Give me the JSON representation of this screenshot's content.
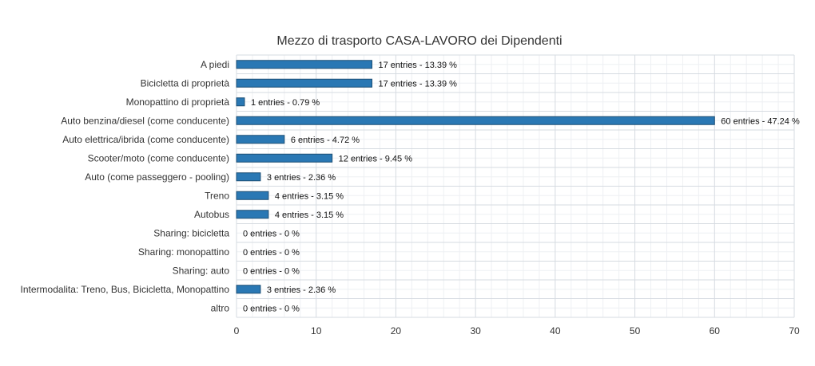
{
  "chart_data": {
    "type": "bar",
    "orientation": "horizontal",
    "title": "Mezzo di trasporto CASA-LAVORO dei Dipendenti",
    "xlabel": "",
    "ylabel": "",
    "xlim": [
      0,
      70
    ],
    "x_ticks": [
      "0",
      "10",
      "20",
      "30",
      "40",
      "50",
      "60",
      "70"
    ],
    "grid": "major and minor, both axes",
    "legend": "none",
    "bar_color": "#2a78b4",
    "categories": [
      "A piedi",
      "Bicicletta di proprietà",
      "Monopattino di proprietà",
      "Auto benzina/diesel (come conducente)",
      "Auto elettrica/ibrida (come conducente)",
      "Scooter/moto (come conducente)",
      "Auto (come passeggero - pooling)",
      "Treno",
      "Autobus",
      "Sharing: bicicletta",
      "Sharing: monopattino",
      "Sharing: auto",
      "Intermodalita: Treno, Bus, Bicicletta, Monopattino",
      "altro"
    ],
    "values": [
      17,
      17,
      1,
      60,
      6,
      12,
      3,
      4,
      4,
      0,
      0,
      0,
      3,
      0
    ],
    "data_labels": [
      "17 entries - 13.39 %",
      "17 entries - 13.39 %",
      "1 entries - 0.79 %",
      "60 entries - 47.24 %",
      "6 entries - 4.72 %",
      "12 entries - 9.45 %",
      "3 entries - 2.36 %",
      "4 entries - 3.15 %",
      "4 entries - 3.15 %",
      "0 entries - 0 %",
      "0 entries - 0 %",
      "0 entries - 0 %",
      "3 entries - 2.36 %",
      "0 entries - 0 %"
    ]
  }
}
